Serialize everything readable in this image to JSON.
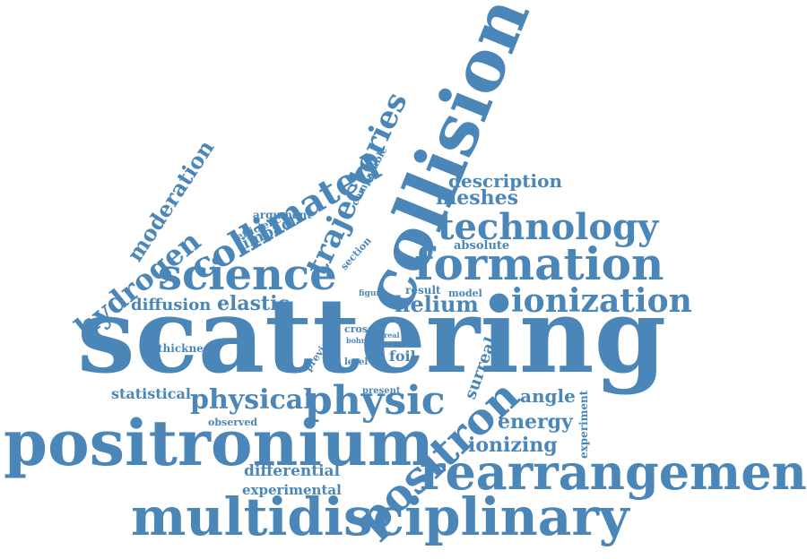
{
  "colors": {
    "word": "#4a86b8",
    "background": "#ffffff"
  },
  "words": [
    "scattering",
    "collision",
    "positronium",
    "multidisciplinary",
    "rearrangement",
    "formation",
    "science",
    "positron",
    "technology",
    "ionization",
    "physic",
    "collimated",
    "trajectories",
    "hydrogen",
    "moderation",
    "physical",
    "diffusion",
    "elastic",
    "helium",
    "meshes",
    "description",
    "ionizing",
    "energy",
    "angle",
    "differential",
    "experimental",
    "statistical",
    "impact",
    "surreal",
    "foil",
    "thickness",
    "argument",
    "efficiency",
    "absolute",
    "comparable",
    "section",
    "result",
    "model",
    "figure",
    "previous",
    "cross",
    "bohm",
    "real",
    "level",
    "present",
    "observed",
    "experiment"
  ]
}
